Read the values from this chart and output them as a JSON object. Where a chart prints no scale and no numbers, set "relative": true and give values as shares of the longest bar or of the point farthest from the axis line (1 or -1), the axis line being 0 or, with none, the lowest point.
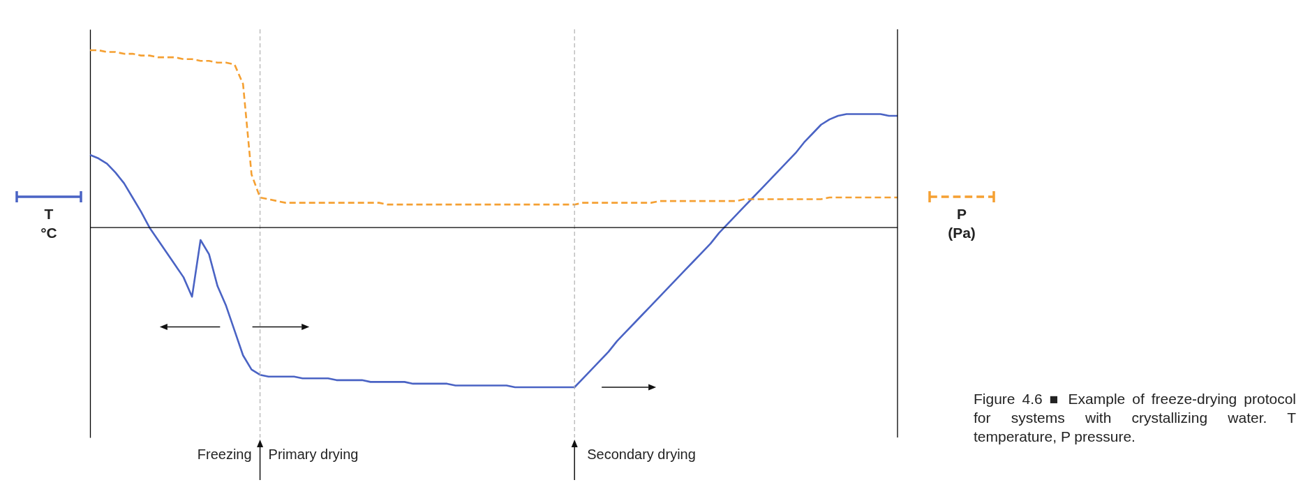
{
  "chart_data": {
    "type": "line",
    "relative": true,
    "legend": "left",
    "categories": [
      null,
      null,
      null,
      null,
      null,
      null,
      null,
      null,
      null,
      null,
      null,
      null,
      null,
      null,
      null,
      null,
      null,
      null,
      null,
      null,
      null,
      null,
      null,
      null,
      null,
      null,
      null,
      null,
      null,
      null,
      null,
      null,
      null,
      null,
      null,
      null,
      null,
      null,
      null,
      null,
      null,
      null,
      null,
      null,
      null,
      null,
      null,
      null,
      null,
      null,
      null,
      null,
      null,
      null,
      null,
      null,
      null,
      null,
      null,
      null,
      null,
      null,
      null,
      null,
      null,
      null,
      null,
      null,
      null,
      null,
      null,
      null,
      null,
      null,
      null,
      null,
      null,
      null,
      null,
      null,
      null,
      null,
      null,
      null,
      null,
      null,
      null,
      null,
      null,
      null,
      null,
      null,
      null,
      null,
      null,
      null
    ],
    "series": [
      {
        "name": "T °C",
        "color": "#4a63c4",
        "line_style": "solid",
        "values": [
          0.41,
          0.39,
          0.36,
          0.31,
          0.25,
          0.17,
          0.09,
          0.0,
          -0.07,
          -0.14,
          -0.21,
          -0.28,
          -0.39,
          -0.07,
          -0.15,
          -0.33,
          -0.44,
          -0.58,
          -0.72,
          -0.8,
          -0.83,
          -0.84,
          -0.84,
          -0.84,
          -0.84,
          -0.85,
          -0.85,
          -0.85,
          -0.85,
          -0.86,
          -0.86,
          -0.86,
          -0.86,
          -0.87,
          -0.87,
          -0.87,
          -0.87,
          -0.87,
          -0.88,
          -0.88,
          -0.88,
          -0.88,
          -0.88,
          -0.89,
          -0.89,
          -0.89,
          -0.89,
          -0.89,
          -0.89,
          -0.89,
          -0.9,
          -0.9,
          -0.9,
          -0.9,
          -0.9,
          -0.9,
          -0.9,
          -0.9,
          -0.85,
          -0.8,
          -0.75,
          -0.7,
          -0.64,
          -0.59,
          -0.54,
          -0.49,
          -0.44,
          -0.39,
          -0.34,
          -0.29,
          -0.24,
          -0.19,
          -0.14,
          -0.09,
          -0.03,
          0.02,
          0.07,
          0.12,
          0.17,
          0.22,
          0.27,
          0.32,
          0.37,
          0.42,
          0.48,
          0.53,
          0.58,
          0.61,
          0.63,
          0.64,
          0.64,
          0.64,
          0.64,
          0.64,
          0.63,
          0.63
        ]
      },
      {
        "name": "P (Pa)",
        "color": "#f5a032",
        "line_style": "dashed",
        "values": [
          1.0,
          1.0,
          0.99,
          0.99,
          0.98,
          0.98,
          0.97,
          0.97,
          0.96,
          0.96,
          0.96,
          0.95,
          0.95,
          0.94,
          0.94,
          0.93,
          0.93,
          0.92,
          0.81,
          0.3,
          0.17,
          0.16,
          0.15,
          0.14,
          0.14,
          0.14,
          0.14,
          0.14,
          0.14,
          0.14,
          0.14,
          0.14,
          0.14,
          0.14,
          0.14,
          0.13,
          0.13,
          0.13,
          0.13,
          0.13,
          0.13,
          0.13,
          0.13,
          0.13,
          0.13,
          0.13,
          0.13,
          0.13,
          0.13,
          0.13,
          0.13,
          0.13,
          0.13,
          0.13,
          0.13,
          0.13,
          0.13,
          0.13,
          0.14,
          0.14,
          0.14,
          0.14,
          0.14,
          0.14,
          0.14,
          0.14,
          0.14,
          0.15,
          0.15,
          0.15,
          0.15,
          0.15,
          0.15,
          0.15,
          0.15,
          0.15,
          0.15,
          0.16,
          0.16,
          0.16,
          0.16,
          0.16,
          0.16,
          0.16,
          0.16,
          0.16,
          0.16,
          0.17,
          0.17,
          0.17,
          0.17,
          0.17,
          0.17,
          0.17,
          0.17,
          0.17
        ]
      }
    ],
    "annotations": [
      "Freezing",
      "Primary drying",
      "Secondary drying",
      "Figure 4.6 ■ Example of freeze-drying protocol for systems with crystallizing water. T temperature, P pressure."
    ]
  }
}
